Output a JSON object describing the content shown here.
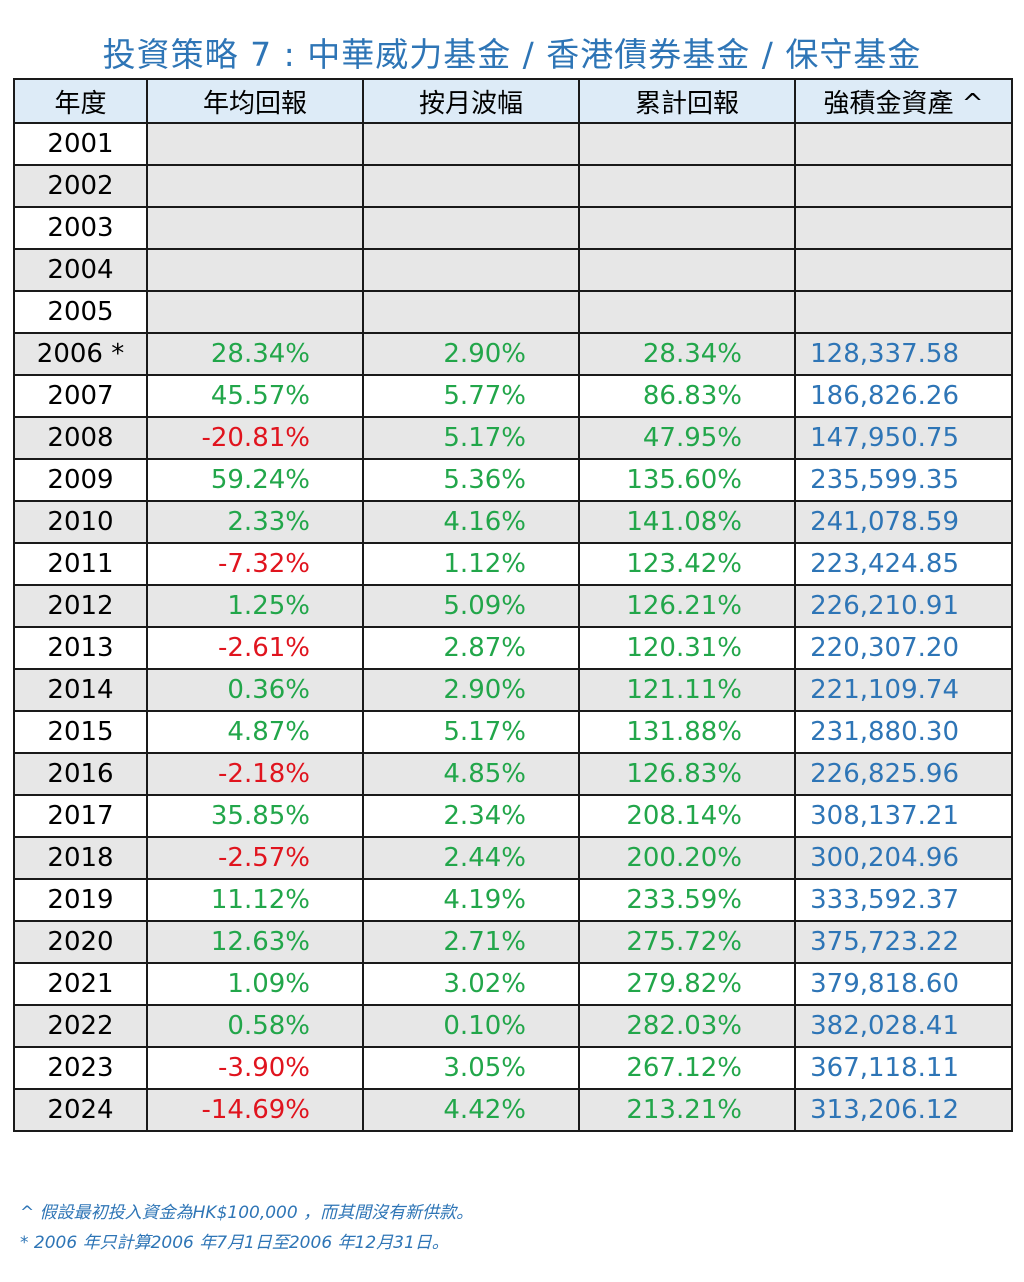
{
  "title": "投資策略 7 : 中華威力基金 / 香港債券基金  /  保守基金",
  "headers": [
    "年度",
    "年均回報",
    "按月波幅",
    "累計回報",
    "強積金資產 ^"
  ],
  "empty_years": [
    "2001",
    "2002",
    "2003",
    "2004",
    "2005"
  ],
  "rows": [
    {
      "year": "2006 *",
      "annual": "28.34%",
      "vol": "2.90%",
      "cum": "28.34%",
      "asset": "128,337.58",
      "neg": false
    },
    {
      "year": "2007",
      "annual": "45.57%",
      "vol": "5.77%",
      "cum": "86.83%",
      "asset": "186,826.26",
      "neg": false
    },
    {
      "year": "2008",
      "annual": "-20.81%",
      "vol": "5.17%",
      "cum": "47.95%",
      "asset": "147,950.75",
      "neg": true
    },
    {
      "year": "2009",
      "annual": "59.24%",
      "vol": "5.36%",
      "cum": "135.60%",
      "asset": "235,599.35",
      "neg": false
    },
    {
      "year": "2010",
      "annual": "2.33%",
      "vol": "4.16%",
      "cum": "141.08%",
      "asset": "241,078.59",
      "neg": false
    },
    {
      "year": "2011",
      "annual": "-7.32%",
      "vol": "1.12%",
      "cum": "123.42%",
      "asset": "223,424.85",
      "neg": true
    },
    {
      "year": "2012",
      "annual": "1.25%",
      "vol": "5.09%",
      "cum": "126.21%",
      "asset": "226,210.91",
      "neg": false
    },
    {
      "year": "2013",
      "annual": "-2.61%",
      "vol": "2.87%",
      "cum": "120.31%",
      "asset": "220,307.20",
      "neg": true
    },
    {
      "year": "2014",
      "annual": "0.36%",
      "vol": "2.90%",
      "cum": "121.11%",
      "asset": "221,109.74",
      "neg": false
    },
    {
      "year": "2015",
      "annual": "4.87%",
      "vol": "5.17%",
      "cum": "131.88%",
      "asset": "231,880.30",
      "neg": false
    },
    {
      "year": "2016",
      "annual": "-2.18%",
      "vol": "4.85%",
      "cum": "126.83%",
      "asset": "226,825.96",
      "neg": true
    },
    {
      "year": "2017",
      "annual": "35.85%",
      "vol": "2.34%",
      "cum": "208.14%",
      "asset": "308,137.21",
      "neg": false
    },
    {
      "year": "2018",
      "annual": "-2.57%",
      "vol": "2.44%",
      "cum": "200.20%",
      "asset": "300,204.96",
      "neg": true
    },
    {
      "year": "2019",
      "annual": "11.12%",
      "vol": "4.19%",
      "cum": "233.59%",
      "asset": "333,592.37",
      "neg": false
    },
    {
      "year": "2020",
      "annual": "12.63%",
      "vol": "2.71%",
      "cum": "275.72%",
      "asset": "375,723.22",
      "neg": false
    },
    {
      "year": "2021",
      "annual": "1.09%",
      "vol": "3.02%",
      "cum": "279.82%",
      "asset": "379,818.60",
      "neg": false
    },
    {
      "year": "2022",
      "annual": "0.58%",
      "vol": "0.10%",
      "cum": "282.03%",
      "asset": "382,028.41",
      "neg": false
    },
    {
      "year": "2023",
      "annual": "-3.90%",
      "vol": "3.05%",
      "cum": "267.12%",
      "asset": "367,118.11",
      "neg": true
    },
    {
      "year": "2024",
      "annual": "-14.69%",
      "vol": "4.42%",
      "cum": "213.21%",
      "asset": "313,206.12",
      "neg": true
    }
  ],
  "notes": [
    "^ 假設最初投入資金為HK$100,000 ，而其間沒有新供款。",
    "* 2006 年只計算2006 年7月1日至2006 年12月31日。"
  ],
  "colors": {
    "title": "#2e75b6",
    "positive": "#22a64a",
    "negative": "#e0141e",
    "asset": "#2e75b6",
    "header_bg": "#ddebf7",
    "alt_row_bg": "#e7e7e7"
  }
}
